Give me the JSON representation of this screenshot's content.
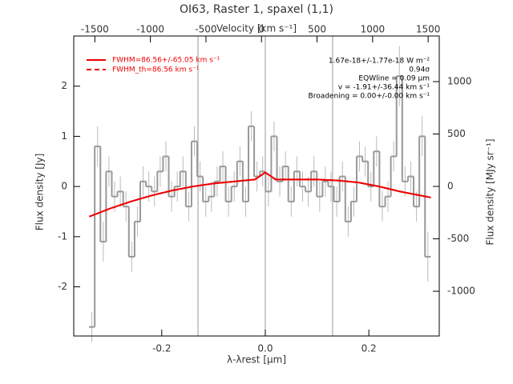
{
  "chart_data": {
    "type": "step",
    "title": "OI63, Raster 1, spaxel (1,1)",
    "xlabel": "λ-λrest [μm]",
    "ylabel": "Flux density [Jy]",
    "x2label": "Velocity [km s⁻¹]",
    "y2label": "Flux density [MJy sr⁻¹]",
    "xlim": [
      -0.37,
      0.336
    ],
    "ylim": [
      -2.98,
      3.0
    ],
    "x2lim": [
      -1690,
      1600
    ],
    "y2lim": [
      -1427,
      1435
    ],
    "xticks": [
      {
        "value": -0.2,
        "label": "-0.2"
      },
      {
        "value": 0,
        "label": "0.0"
      },
      {
        "value": 0.2,
        "label": "0.2"
      }
    ],
    "yticks": [
      -2,
      -1,
      0,
      1,
      2
    ],
    "x2ticks": [
      -1500,
      -1000,
      -500,
      0,
      500,
      1000,
      1500
    ],
    "y2ticks": [
      -1000,
      -500,
      0,
      500,
      1000
    ],
    "reference_lines": [
      -0.13,
      0,
      0.13
    ],
    "annotations": [
      "1.67e-18+/-1.77e-18 W m⁻²",
      "0.94σ",
      "EQWline = 0.09 μm",
      "v = -1.91+/-36.44 km s⁻¹",
      "Broadening = 0.00+/-0.00 km s⁻¹"
    ],
    "series": [
      {
        "name": "spectrum",
        "color": "#999999",
        "x": [
          -0.335,
          -0.324,
          -0.313,
          -0.302,
          -0.291,
          -0.28,
          -0.269,
          -0.258,
          -0.247,
          -0.236,
          -0.225,
          -0.214,
          -0.203,
          -0.192,
          -0.181,
          -0.17,
          -0.159,
          -0.148,
          -0.137,
          -0.126,
          -0.115,
          -0.104,
          -0.093,
          -0.082,
          -0.071,
          -0.06,
          -0.049,
          -0.038,
          -0.027,
          -0.016,
          -0.005,
          0.006,
          0.017,
          0.028,
          0.039,
          0.05,
          0.061,
          0.072,
          0.083,
          0.094,
          0.105,
          0.116,
          0.127,
          0.138,
          0.149,
          0.16,
          0.171,
          0.182,
          0.193,
          0.204,
          0.215,
          0.226,
          0.237,
          0.248,
          0.259,
          0.27,
          0.281,
          0.292,
          0.303,
          0.314
        ],
        "values": [
          -2.8,
          0.8,
          -1.1,
          0.3,
          -0.2,
          -0.1,
          -0.4,
          -1.4,
          -0.7,
          0.1,
          0.0,
          -0.1,
          0.3,
          0.6,
          -0.2,
          0.0,
          0.3,
          -0.4,
          0.9,
          0.2,
          -0.3,
          -0.2,
          0.1,
          0.4,
          -0.3,
          0.0,
          0.5,
          -0.3,
          1.2,
          0.2,
          0.3,
          -0.1,
          1.0,
          0.1,
          0.4,
          -0.3,
          0.3,
          0.0,
          -0.1,
          0.3,
          -0.2,
          0.1,
          0.0,
          -0.3,
          0.2,
          -0.7,
          -0.3,
          0.6,
          0.5,
          0.0,
          0.7,
          -0.4,
          -0.2,
          0.6,
          2.2,
          0.1,
          0.2,
          -0.4,
          1.0,
          -1.4
        ],
        "errors": [
          0.3,
          0.4,
          0.4,
          0.3,
          0.3,
          0.3,
          0.3,
          0.3,
          0.3,
          0.3,
          0.3,
          0.3,
          0.3,
          0.3,
          0.3,
          0.3,
          0.3,
          0.3,
          0.3,
          0.3,
          0.3,
          0.3,
          0.3,
          0.3,
          0.3,
          0.3,
          0.3,
          0.3,
          0.3,
          0.3,
          0.3,
          0.3,
          0.3,
          0.3,
          0.3,
          0.3,
          0.3,
          0.3,
          0.3,
          0.3,
          0.3,
          0.3,
          0.3,
          0.3,
          0.3,
          0.3,
          0.3,
          0.3,
          0.3,
          0.3,
          0.3,
          0.3,
          0.3,
          0.3,
          0.6,
          0.3,
          0.3,
          0.3,
          0.4,
          0.5
        ]
      },
      {
        "name": "FWHM=86.56+/-65.05 km s⁻¹",
        "color": "#ee0000",
        "style": "solid",
        "x": [
          -0.34,
          -0.3,
          -0.26,
          -0.22,
          -0.18,
          -0.14,
          -0.1,
          -0.06,
          -0.02,
          0,
          0.02,
          0.06,
          0.1,
          0.14,
          0.18,
          0.22,
          0.26,
          0.3,
          0.32
        ],
        "values": [
          -0.6,
          -0.44,
          -0.3,
          -0.18,
          -0.08,
          0.0,
          0.06,
          0.1,
          0.14,
          0.28,
          0.14,
          0.14,
          0.14,
          0.12,
          0.08,
          0.0,
          -0.1,
          -0.18,
          -0.22
        ]
      },
      {
        "name": "FWHM_th=86.56 km s⁻¹",
        "color": "#ee0000",
        "style": "dashed",
        "x": [
          -0.34,
          -0.3,
          -0.26,
          -0.22,
          -0.18,
          -0.14,
          -0.1,
          -0.06,
          -0.02,
          0,
          0.02,
          0.06,
          0.1,
          0.14,
          0.18,
          0.22,
          0.26,
          0.3,
          0.32
        ],
        "values": [
          -0.6,
          -0.44,
          -0.3,
          -0.18,
          -0.08,
          0.0,
          0.06,
          0.1,
          0.14,
          0.28,
          0.14,
          0.14,
          0.14,
          0.12,
          0.08,
          0.0,
          -0.1,
          -0.18,
          -0.22
        ]
      }
    ]
  }
}
